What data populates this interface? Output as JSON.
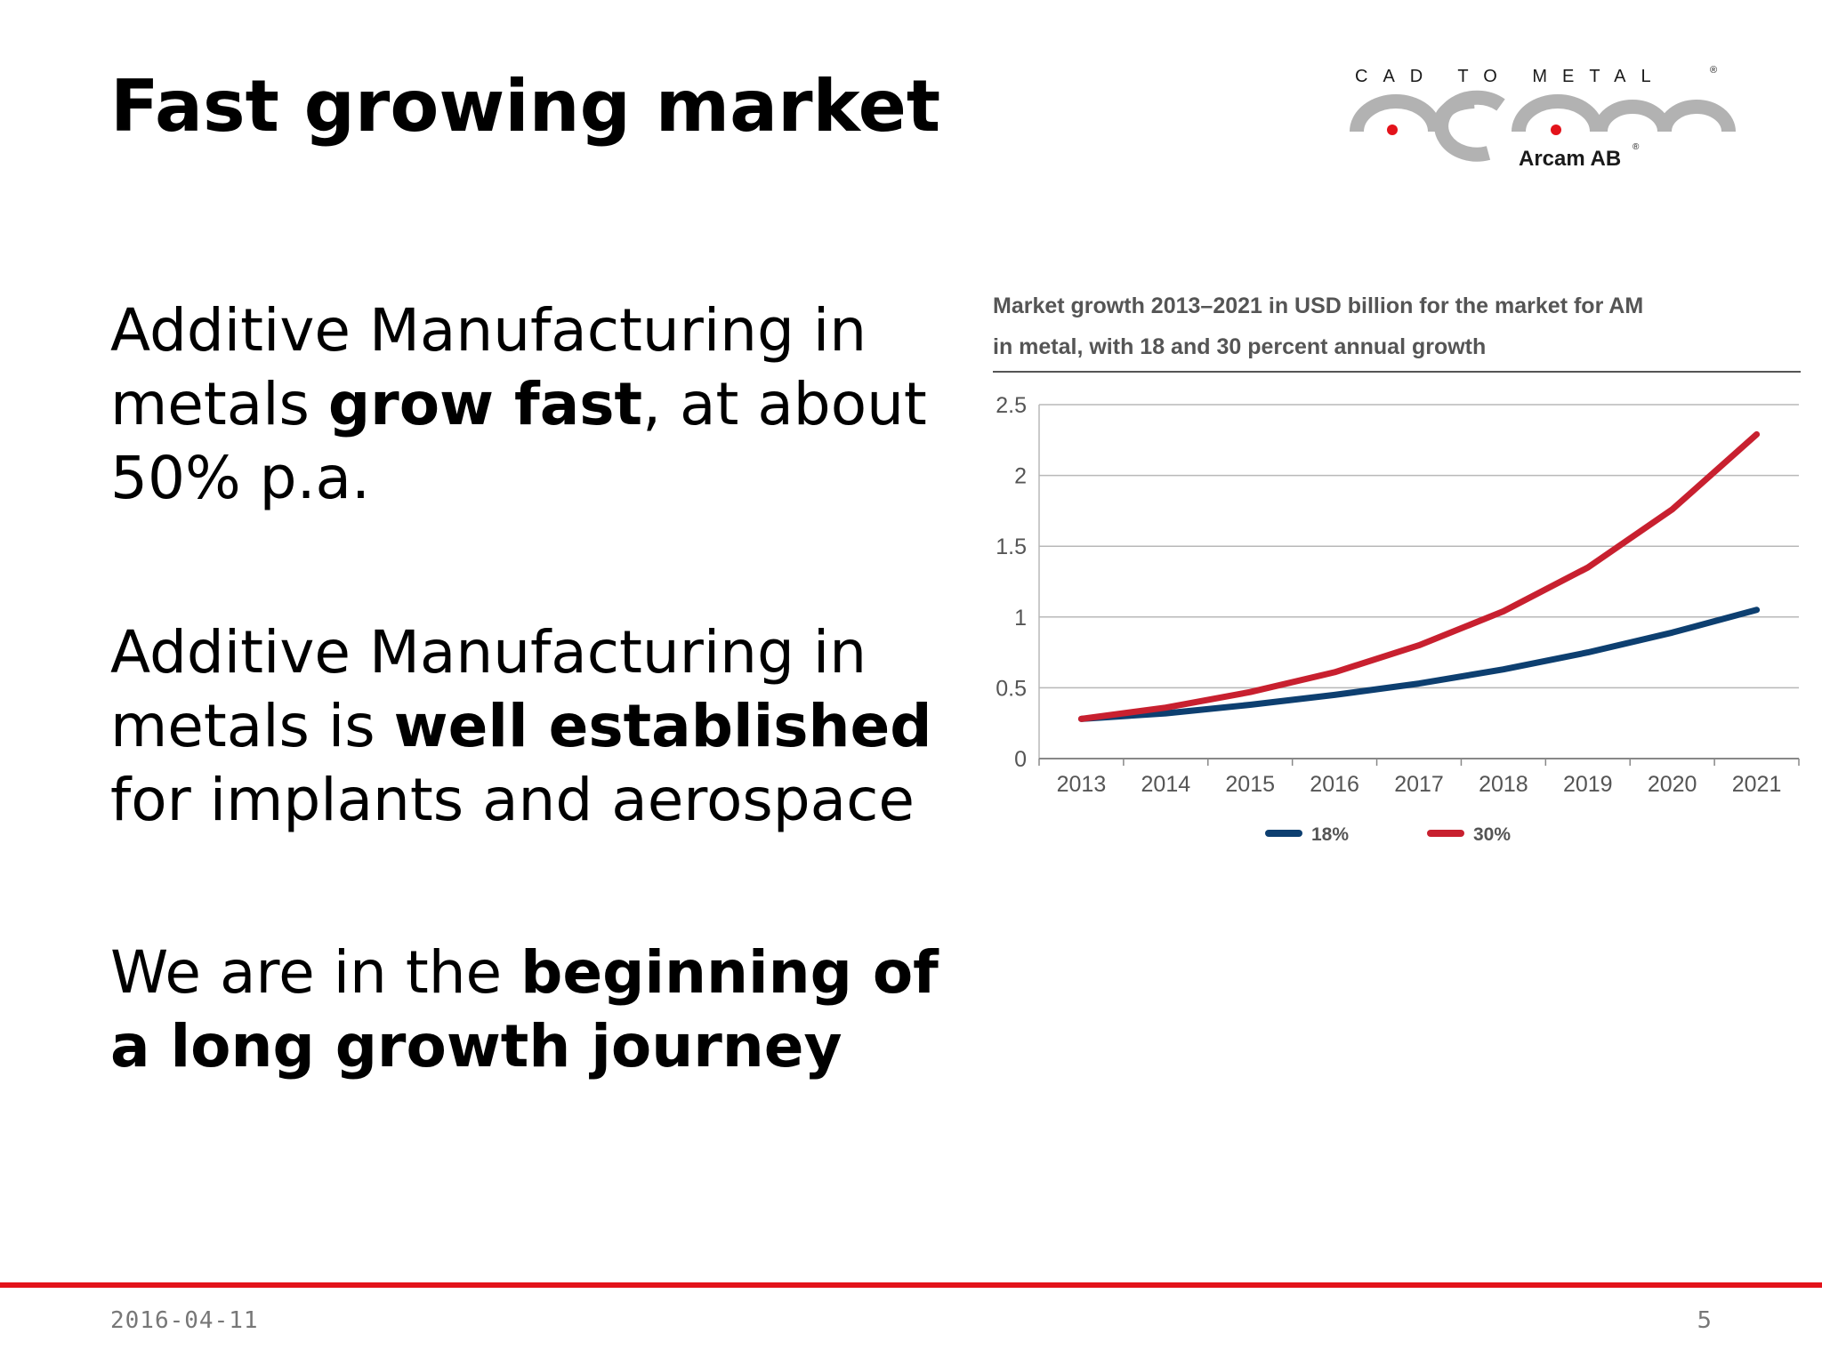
{
  "slide": {
    "title": "Fast growing market",
    "bullets": [
      {
        "parts": [
          {
            "text": "Additive Manufacturing in metals ",
            "bold": false
          },
          {
            "text": "grow fast",
            "bold": true
          },
          {
            "text": ", at about 50% p.a.",
            "bold": false
          }
        ]
      },
      {
        "parts": [
          {
            "text": "Additive Manufacturing in metals is ",
            "bold": false
          },
          {
            "text": "well established",
            "bold": true
          },
          {
            "text": " for implants and aerospace",
            "bold": false
          }
        ]
      },
      {
        "parts": [
          {
            "text": "We are in the ",
            "bold": false
          },
          {
            "text": "beginning of a long growth journey",
            "bold": true
          }
        ]
      }
    ]
  },
  "logo": {
    "tagline": "CAD TO METAL",
    "company": "Arcam AB",
    "registered_mark": "®",
    "colors": {
      "arc": "#b2b2b2",
      "dot": "#e3131b",
      "text": "#1a1a1a"
    }
  },
  "chart_data": {
    "type": "line",
    "title": "Market growth 2013–2021 in USD billion for the market for AM in metal, with 18 and 30 percent annual growth",
    "title_lines": [
      "Market growth 2013–2021 in USD billion for the market for AM",
      "in metal, with 18 and 30 percent annual growth"
    ],
    "x": [
      "2013",
      "2014",
      "2015",
      "2016",
      "2017",
      "2018",
      "2019",
      "2020",
      "2021"
    ],
    "yticks": [
      "0",
      "0.5",
      "1",
      "1.5",
      "2",
      "2.5"
    ],
    "ylim": [
      0,
      2.5
    ],
    "grid": true,
    "legend_position": "bottom",
    "series": [
      {
        "name": "18%",
        "color": "#0d3f70",
        "values": [
          0.28,
          0.32,
          0.38,
          0.45,
          0.53,
          0.63,
          0.75,
          0.89,
          1.05
        ]
      },
      {
        "name": "30%",
        "color": "#c8202f",
        "values": [
          0.28,
          0.36,
          0.47,
          0.61,
          0.8,
          1.04,
          1.35,
          1.76,
          2.29
        ]
      }
    ]
  },
  "footer": {
    "date": "2016-04-11",
    "page": "5",
    "rule_color": "#e3131b"
  }
}
